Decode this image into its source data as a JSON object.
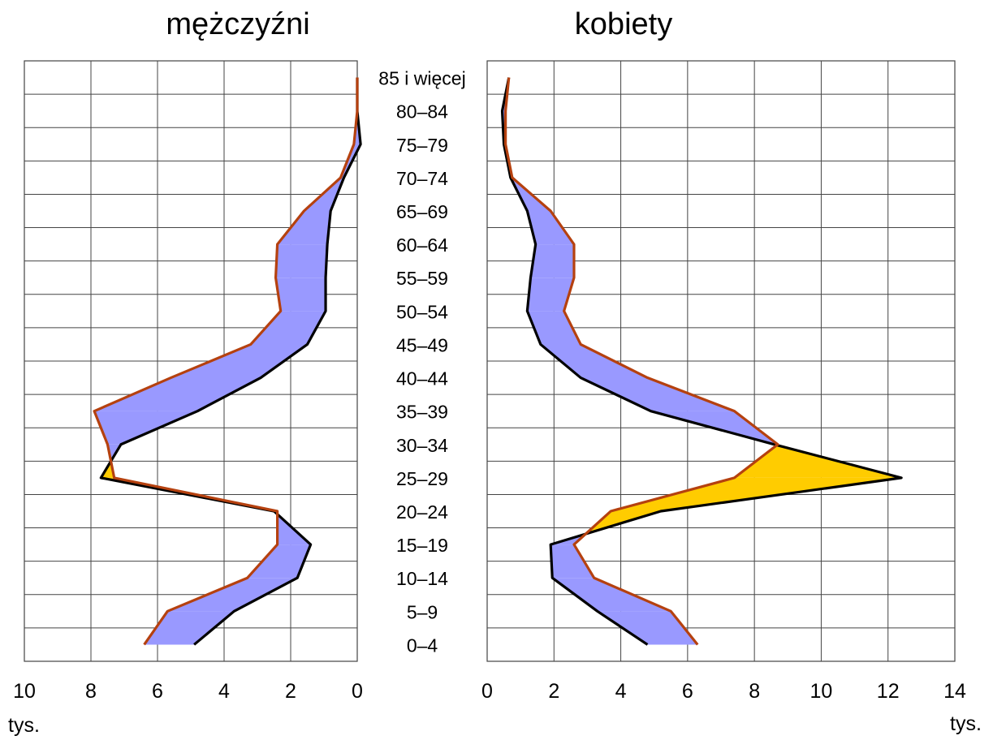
{
  "chart_data": {
    "type": "area",
    "unit_label": "tys.",
    "age_groups": [
      "85 i więcej",
      "80–84",
      "75–79",
      "70–74",
      "65–69",
      "60–64",
      "55–59",
      "50–54",
      "45–49",
      "40–44",
      "35–39",
      "30–34",
      "25–29",
      "20–24",
      "15–19",
      "10–14",
      "5–9",
      "0–4"
    ],
    "panels": [
      {
        "key": "men",
        "title": "mężczyźni",
        "xlim": [
          10,
          0
        ],
        "ticks": [
          10,
          8,
          6,
          4,
          2,
          0
        ],
        "series": [
          {
            "color": "#000000",
            "values": [
              0.0,
              0.0,
              -0.1,
              0.4,
              0.8,
              0.9,
              0.95,
              0.95,
              1.5,
              2.9,
              4.8,
              7.1,
              7.7,
              2.5,
              1.4,
              1.8,
              3.7,
              4.9
            ]
          },
          {
            "color": "#b5410f",
            "values": [
              0.0,
              0.0,
              0.1,
              0.5,
              1.6,
              2.4,
              2.45,
              2.3,
              3.2,
              5.6,
              7.9,
              7.5,
              7.3,
              2.4,
              2.4,
              3.3,
              5.7,
              6.4
            ]
          }
        ],
        "fill_colors": {
          "surplus": "#9999ff",
          "deficit": "#ffcc00"
        }
      },
      {
        "key": "women",
        "title": "kobiety",
        "xlim": [
          0,
          14
        ],
        "ticks": [
          0,
          2,
          4,
          6,
          8,
          10,
          12,
          14
        ],
        "series": [
          {
            "color": "#000000",
            "values": [
              0.65,
              0.45,
              0.5,
              0.7,
              1.2,
              1.45,
              1.3,
              1.2,
              1.6,
              2.8,
              4.9,
              8.6,
              12.4,
              5.2,
              1.9,
              1.95,
              3.3,
              4.8
            ]
          },
          {
            "color": "#b5410f",
            "values": [
              0.65,
              0.55,
              0.55,
              0.75,
              1.9,
              2.6,
              2.6,
              2.3,
              2.8,
              4.8,
              7.4,
              8.7,
              7.4,
              3.7,
              2.6,
              3.2,
              5.5,
              6.3
            ]
          }
        ],
        "fill_colors": {
          "surplus": "#9999ff",
          "deficit": "#ffcc00"
        }
      }
    ]
  }
}
